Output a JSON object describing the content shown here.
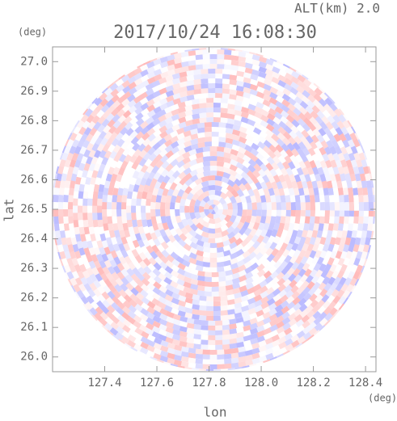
{
  "chart_data": {
    "type": "radar-scan",
    "title": "2017/10/24 16:08:30",
    "altitude_label": "ALT(km) 2.0",
    "y_unit": "(deg)",
    "x_unit": "(deg)",
    "xlabel": "lon",
    "ylabel": "lat",
    "xlim": [
      127.2,
      128.44
    ],
    "ylim": [
      25.95,
      27.05
    ],
    "xticks": [
      127.4,
      127.6,
      127.8,
      {
        "value": 128.0,
        "label": "128.0"
      },
      128.2,
      128.4
    ],
    "yticks": [
      {
        "value": 26.0,
        "label": "26.0"
      },
      26.1,
      26.2,
      26.3,
      26.4,
      26.5,
      26.6,
      26.7,
      26.8,
      26.9,
      {
        "value": 27.0,
        "label": "27.0"
      }
    ]
  }
}
